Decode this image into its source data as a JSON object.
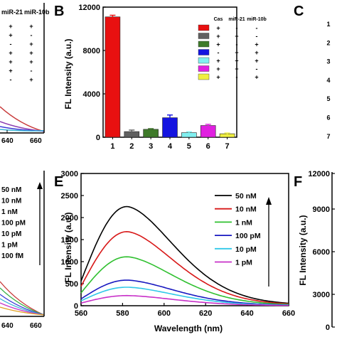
{
  "panels": {
    "A": {
      "label": "",
      "ticks": [
        "640",
        "660"
      ],
      "table_header": [
        "miR-21",
        "miR-10b"
      ],
      "table_rows": [
        [
          "+",
          "+"
        ],
        [
          "+",
          "-"
        ],
        [
          "-",
          "+"
        ],
        [
          "+",
          "+"
        ],
        [
          "+",
          "+"
        ],
        [
          "+",
          "-"
        ],
        [
          "-",
          "+"
        ]
      ],
      "curve_colors": [
        "#c83a3a",
        "#8a3ab0",
        "#3a3ad6",
        "#3bb6d6"
      ]
    },
    "C": {
      "label": "C",
      "row_numbers": [
        "1",
        "2",
        "3",
        "4",
        "5",
        "6",
        "7"
      ]
    },
    "D": {
      "label": "",
      "ticks": [
        "640",
        "660"
      ],
      "legend": [
        "50 nM",
        "10 nM",
        "1 nM",
        "100 pM",
        "10 pM",
        "1 pM",
        "100 fM"
      ],
      "curve_colors": [
        "#c83a3a",
        "#3bb34a",
        "#3a3ad6",
        "#3bb6d6",
        "#c83ac8",
        "#e0a020"
      ]
    },
    "F": {
      "label": "F",
      "ylabel": "FL Intensity (a.u.)",
      "yticks": [
        "12000",
        "9000",
        "6000",
        "3000",
        "0"
      ]
    }
  },
  "chart_data": [
    {
      "panel": "B",
      "label": "B",
      "type": "bar",
      "categories": [
        "1",
        "2",
        "3",
        "4",
        "5",
        "6",
        "7"
      ],
      "values": [
        11100,
        520,
        730,
        1800,
        420,
        1080,
        320
      ],
      "errors": [
        150,
        140,
        60,
        250,
        80,
        110,
        70
      ],
      "colors": [
        "#e81010",
        "#606060",
        "#3f7a2a",
        "#1414e0",
        "#80f0f0",
        "#e020e0",
        "#f0f040"
      ],
      "ylabel": "FL Intensity (a.u.)",
      "ylim": [
        0,
        12000
      ],
      "yticks": [
        0,
        4000,
        8000,
        12000
      ],
      "table": {
        "headers": [
          "Cas",
          "miR-21",
          "miR-10b"
        ],
        "rows": [
          [
            "+",
            "-",
            "-"
          ],
          [
            "+",
            "+",
            "-"
          ],
          [
            "+",
            "-",
            "+"
          ],
          [
            "-",
            "+",
            "+"
          ],
          [
            "+",
            "+",
            "+"
          ],
          [
            "+",
            "+",
            "-"
          ],
          [
            "+",
            "-",
            "+"
          ]
        ]
      }
    },
    {
      "panel": "E",
      "label": "E",
      "type": "line",
      "xlabel": "Wavelength (nm)",
      "ylabel": "FL Intensity (a.u.)",
      "xlim": [
        560,
        660
      ],
      "ylim": [
        0,
        3000
      ],
      "xticks": [
        560,
        580,
        600,
        620,
        640,
        660
      ],
      "yticks": [
        0,
        500,
        1000,
        1500,
        2000,
        2500,
        3000
      ],
      "peak_x": 582,
      "series": [
        {
          "name": "50 nM",
          "color": "#000000",
          "base": 560,
          "peak": 2250,
          "tail": 20
        },
        {
          "name": "10 nM",
          "color": "#d81818",
          "base": 440,
          "peak": 1680,
          "tail": 15
        },
        {
          "name": "1 nM",
          "color": "#30c030",
          "base": 290,
          "peak": 1110,
          "tail": 12
        },
        {
          "name": "100 pM",
          "color": "#1818c0",
          "base": 155,
          "peak": 580,
          "tail": 8
        },
        {
          "name": "10 pM",
          "color": "#30c8e8",
          "base": 110,
          "peak": 420,
          "tail": 6
        },
        {
          "name": "1 pM",
          "color": "#c830c8",
          "base": 60,
          "peak": 230,
          "tail": 4
        }
      ]
    }
  ]
}
